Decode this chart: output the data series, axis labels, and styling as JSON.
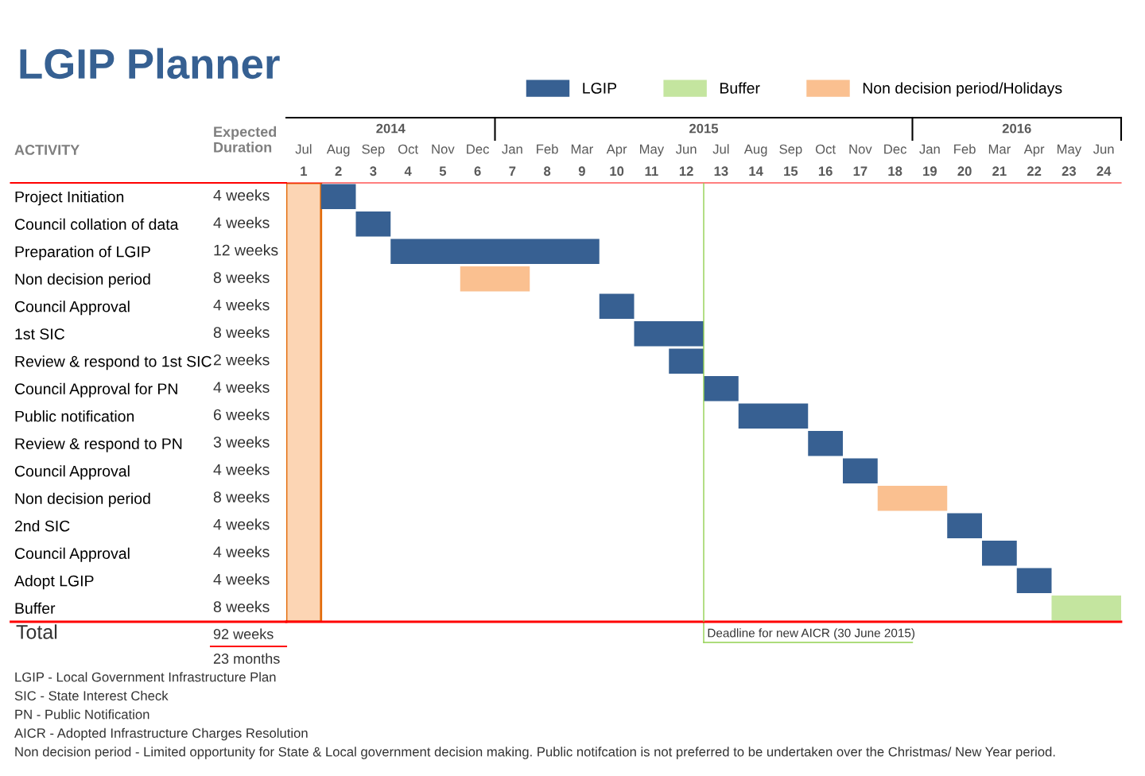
{
  "chart_data": {
    "type": "bar",
    "orientation": "horizontal",
    "title": "LGIP Planner",
    "ylabel": "ACTIVITY",
    "categories": [
      "Project Initiation",
      "Council collation of data",
      "Preparation of LGIP",
      "Non decision period",
      "Council Approval",
      "1st SIC",
      "Review & respond to 1st SIC",
      "Council Approval for PN",
      "Public notification",
      "Review & respond to PN",
      "Council Approval",
      "Non decision period",
      "2nd SIC",
      "Council Approval",
      "Adopt LGIP",
      "Buffer"
    ],
    "series": [
      {
        "name": "LGIP",
        "color": "#376092",
        "values": [
          1,
          1,
          6,
          null,
          1,
          2,
          1,
          1,
          2,
          1,
          1,
          null,
          1,
          1,
          1,
          null
        ],
        "base": [
          1,
          2,
          3,
          null,
          9,
          10,
          11,
          12,
          13,
          15,
          16,
          null,
          19,
          20,
          21,
          null
        ]
      },
      {
        "name": "Buffer",
        "color": "#c4e59f",
        "values": [
          null,
          null,
          null,
          null,
          null,
          null,
          null,
          null,
          null,
          null,
          null,
          null,
          null,
          null,
          null,
          2
        ],
        "base": [
          null,
          null,
          null,
          null,
          null,
          null,
          null,
          null,
          null,
          null,
          null,
          null,
          null,
          null,
          null,
          22
        ]
      },
      {
        "name": "Non decision period/Holidays",
        "color": "#fac090",
        "values": [
          null,
          null,
          null,
          2,
          null,
          null,
          null,
          null,
          null,
          null,
          null,
          2,
          null,
          null,
          null,
          null
        ],
        "base": [
          null,
          null,
          null,
          5,
          null,
          null,
          null,
          null,
          null,
          null,
          null,
          17,
          null,
          null,
          null,
          null
        ]
      }
    ],
    "value_labels": [
      "4 weeks",
      "4 weeks",
      "12 weeks",
      "8 weeks",
      "4 weeks",
      "8 weeks",
      "2 weeks",
      "4 weeks",
      "6 weeks",
      "3 weeks",
      "4 weeks",
      "8 weeks",
      "4 weeks",
      "4 weeks",
      "4 weeks",
      "8 weeks"
    ],
    "xlim": [
      0,
      24
    ],
    "xticks": [
      {
        "value": 0.5,
        "label": "1"
      },
      {
        "value": 1.5,
        "label": "2"
      },
      {
        "value": 2.5,
        "label": "3"
      },
      {
        "value": 3.5,
        "label": "4"
      },
      {
        "value": 4.5,
        "label": "5"
      },
      {
        "value": 5.5,
        "label": "6"
      },
      {
        "value": 6.5,
        "label": "7"
      },
      {
        "value": 7.5,
        "label": "8"
      },
      {
        "value": 8.5,
        "label": "9"
      },
      {
        "value": 9.5,
        "label": "10"
      },
      {
        "value": 10.5,
        "label": "11"
      },
      {
        "value": 11.5,
        "label": "12"
      },
      {
        "value": 12.5,
        "label": "13"
      },
      {
        "value": 13.5,
        "label": "14"
      },
      {
        "value": 14.5,
        "label": "15"
      },
      {
        "value": 15.5,
        "label": "16"
      },
      {
        "value": 16.5,
        "label": "17"
      },
      {
        "value": 17.5,
        "label": "18"
      },
      {
        "value": 18.5,
        "label": "19"
      },
      {
        "value": 19.5,
        "label": "20"
      },
      {
        "value": 20.5,
        "label": "21"
      },
      {
        "value": 21.5,
        "label": "22"
      },
      {
        "value": 22.5,
        "label": "23"
      },
      {
        "value": 23.5,
        "label": "24"
      }
    ],
    "bands": [
      {
        "axis": "x",
        "from": 0,
        "to": 1,
        "color": "#fcd5b4"
      }
    ],
    "ref_lines": [
      {
        "axis": "x",
        "value": 12,
        "label": "Deadline for new AICR (30 June 2015)",
        "color": "#92d050"
      }
    ],
    "legend": "top right",
    "grid": false,
    "annotations": [
      "Expected\nDuration",
      "Total",
      "92 weeks",
      "23 months",
      "LGIP - Local Government Infrastructure Plan",
      "SIC - State Interest Check",
      "PN - Public Notification",
      "AICR - Adopted Infrastructure Charges Resolution",
      "Non decision period - Limited opportunity for State & Local government decision making. Public notifcation is not preferred to be undertaken over the Christmas/ New Year period.",
      "2014",
      "2015",
      "2016",
      "Jul",
      "Aug",
      "Sep",
      "Oct",
      "Nov",
      "Dec",
      "Jan",
      "Feb",
      "Mar",
      "Apr",
      "May",
      "Jun",
      "Jul",
      "Aug",
      "Sep",
      "Oct",
      "Nov",
      "Dec",
      "Jan",
      "Feb",
      "Mar",
      "Apr",
      "May",
      "Jun"
    ]
  }
}
